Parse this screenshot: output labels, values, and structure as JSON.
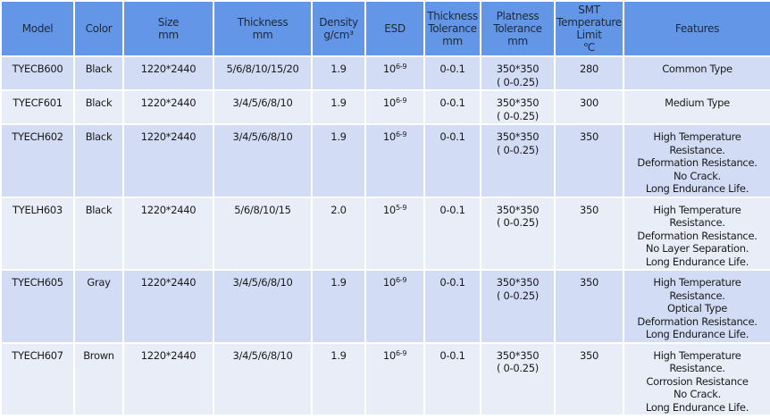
{
  "headers": [
    "Model",
    "Color",
    "Size\nmm",
    "Thickness\nmm",
    "Density\ng/cm³",
    "ESD",
    "Thickness\nTolerance\nmm",
    "Platness\nTolerance\nmm",
    "SMT\nTemperature\nLimit\n℃",
    "Features"
  ],
  "rows": [
    {
      "model": "TYECB600",
      "color": "Black",
      "size": "1220*2440",
      "thickness": "5/6/8/10/15/20",
      "density": "1.9",
      "esd_base": "10",
      "esd_exp": "6-9",
      "thickness_tol": "0-0.1",
      "platness": "350*350\n( 0-0.25)",
      "smt": "280",
      "features": "Common Type"
    },
    {
      "model": "TYECF601",
      "color": "Black",
      "size": "1220*2440",
      "thickness": "3/4/5/6/8/10",
      "density": "1.9",
      "esd_base": "10",
      "esd_exp": "6-9",
      "thickness_tol": "0-0.1",
      "platness": "350*350\n( 0-0.25)",
      "smt": "300",
      "features": "Medium Type"
    },
    {
      "model": "TYECH602",
      "color": "Black",
      "size": "1220*2440",
      "thickness": "3/4/5/6/8/10",
      "density": "1.9",
      "esd_base": "10",
      "esd_exp": "6-9",
      "thickness_tol": "0-0.1",
      "platness": "350*350\n( 0-0.25)",
      "smt": "350",
      "features": "High Temperature\nResistance.\nDeformation Resistance.\nNo Crack.\nLong Endurance Life."
    },
    {
      "model": "TYELH603",
      "color": "Black",
      "size": "1220*2440",
      "thickness": "5/6/8/10/15",
      "density": "2.0",
      "esd_base": "10",
      "esd_exp": "5-9",
      "thickness_tol": "0-0.1",
      "platness": "350*350\n( 0-0.25)",
      "smt": "350",
      "features": "High Temperature\nResistance.\nDeformation Resistance.\nNo Layer Separation.\nLong Endurance Life."
    },
    {
      "model": "TYECH605",
      "color": "Gray",
      "size": "1220*2440",
      "thickness": "3/4/5/6/8/10",
      "density": "1.9",
      "esd_base": "10",
      "esd_exp": "6-9",
      "thickness_tol": "0-0.1",
      "platness": "350*350\n( 0-0.25)",
      "smt": "350",
      "features": "High Temperature\nResistance.\nOptical Type\nDeformation Resistance.\nLong Endurance Life."
    },
    {
      "model": "TYECH607",
      "color": "Brown",
      "size": "1220*2440",
      "thickness": "3/4/5/6/8/10",
      "density": "1.9",
      "esd_base": "10",
      "esd_exp": "6-9",
      "thickness_tol": "0-0.1",
      "platness": "350*350\n( 0-0.25)",
      "smt": "350",
      "features": "High Temperature\nResistance.\nCorrosion Resistance\nNo Crack.\nLong Endurance Life."
    }
  ],
  "colors": {
    "header_bg": "#6396e6",
    "row_dark": "#d2dcf4",
    "row_light": "#e9edf8"
  }
}
